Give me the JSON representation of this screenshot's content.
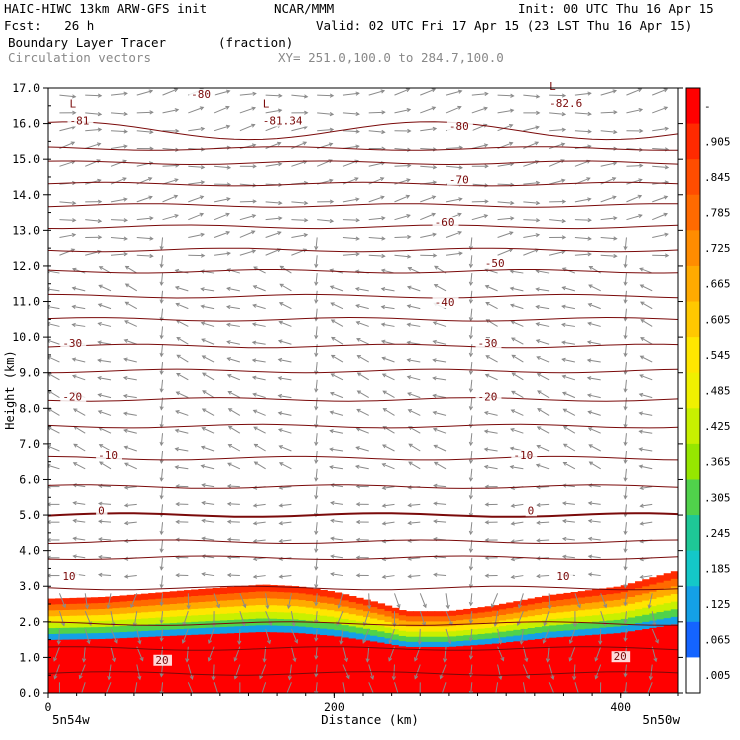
{
  "header": {
    "model": "HAIC-HIWC 13km ARW-GFS init",
    "org": "NCAR/MMM",
    "init": "Init: 00 UTC Thu 16 Apr 15",
    "fcst": "Fcst:   26 h",
    "valid": "Valid: 02 UTC Fri 17 Apr 15 (23 LST Thu 16 Apr 15)",
    "field": "Boundary Layer Tracer",
    "units": "(fraction)",
    "field2": "Circulation vectors",
    "xy": "XY= 251.0,100.0 to 284.7,100.0"
  },
  "endpoints": {
    "left": "5n54w",
    "right": "5n50w"
  },
  "chart_data": {
    "type": "heatmap",
    "xlabel": "Distance (km)",
    "ylabel": "Height (km)",
    "xlim": [
      0,
      440
    ],
    "ylim": [
      0,
      17
    ],
    "xticks": [
      0,
      200,
      400
    ],
    "yticks": [
      "0.0",
      "1.0",
      "2.0",
      "3.0",
      "4.0",
      "5.0",
      "6.0",
      "7.0",
      "8.0",
      "9.0",
      "10.0",
      "11.0",
      "12.0",
      "13.0",
      "14.0",
      "15.0",
      "16.0",
      "17.0"
    ],
    "colorbar_labels": [
      "-",
      ".905",
      ".845",
      ".785",
      ".725",
      ".665",
      ".605",
      ".545",
      ".485",
      ".425",
      ".365",
      ".305",
      ".245",
      ".185",
      ".125",
      ".065",
      ".005"
    ],
    "colorbar_colors": [
      "#ff0000",
      "#ff2a00",
      "#ff4d00",
      "#ff6a00",
      "#ff8c00",
      "#ffaa00",
      "#ffc800",
      "#ffe600",
      "#f0f000",
      "#c8f000",
      "#96e600",
      "#50d24b",
      "#1ec896",
      "#14c8c8",
      "#14a0e6",
      "#1464ff",
      "#ffffff"
    ],
    "tracer_top_km": [
      [
        0,
        2.65
      ],
      [
        40,
        2.7
      ],
      [
        100,
        2.9
      ],
      [
        150,
        3.05
      ],
      [
        175,
        3.0
      ],
      [
        200,
        2.85
      ],
      [
        230,
        2.55
      ],
      [
        250,
        2.3
      ],
      [
        280,
        2.3
      ],
      [
        310,
        2.45
      ],
      [
        350,
        2.75
      ],
      [
        400,
        3.0
      ],
      [
        440,
        3.45
      ]
    ],
    "temperature_labels": [
      {
        "x": 15,
        "y": 16.0,
        "text": "-81"
      },
      {
        "x": 150,
        "y": 16.0,
        "text": "-81.34"
      },
      {
        "x": 100,
        "y": 16.75,
        "text": "-80"
      },
      {
        "x": 280,
        "y": 15.85,
        "text": "-80"
      },
      {
        "x": 350,
        "y": 16.5,
        "text": "-82.6"
      },
      {
        "x": 280,
        "y": 14.35,
        "text": "-70"
      },
      {
        "x": 270,
        "y": 13.15,
        "text": "-60"
      },
      {
        "x": 305,
        "y": 12.0,
        "text": "-50"
      },
      {
        "x": 270,
        "y": 10.9,
        "text": "-40"
      },
      {
        "x": 10,
        "y": 9.75,
        "text": "-30"
      },
      {
        "x": 300,
        "y": 9.75,
        "text": "-30"
      },
      {
        "x": 10,
        "y": 8.25,
        "text": "-20"
      },
      {
        "x": 300,
        "y": 8.25,
        "text": "-20"
      },
      {
        "x": 35,
        "y": 6.6,
        "text": "-10"
      },
      {
        "x": 325,
        "y": 6.6,
        "text": "-10"
      },
      {
        "x": 35,
        "y": 5.05,
        "text": "0"
      },
      {
        "x": 335,
        "y": 5.05,
        "text": "0"
      },
      {
        "x": 10,
        "y": 3.2,
        "text": "10"
      },
      {
        "x": 355,
        "y": 3.2,
        "text": "10"
      },
      {
        "x": 75,
        "y": 0.85,
        "text": "20"
      },
      {
        "x": 395,
        "y": 0.95,
        "text": "20"
      }
    ],
    "low_markers": [
      {
        "x": 15,
        "y": 16.45,
        "text": "L"
      },
      {
        "x": 150,
        "y": 16.45,
        "text": "L"
      },
      {
        "x": 350,
        "y": 16.95,
        "text": "L"
      }
    ],
    "isotherm_levels_km": [
      0.55,
      1.25,
      1.95,
      2.95,
      3.8,
      4.25,
      5.0,
      5.8,
      6.6,
      7.5,
      8.25,
      9.05,
      9.75,
      10.5,
      11.15,
      11.85,
      12.45,
      13.1,
      13.7,
      14.3,
      14.9,
      15.3,
      15.8
    ],
    "grid": false,
    "legend": "right colorbar"
  }
}
